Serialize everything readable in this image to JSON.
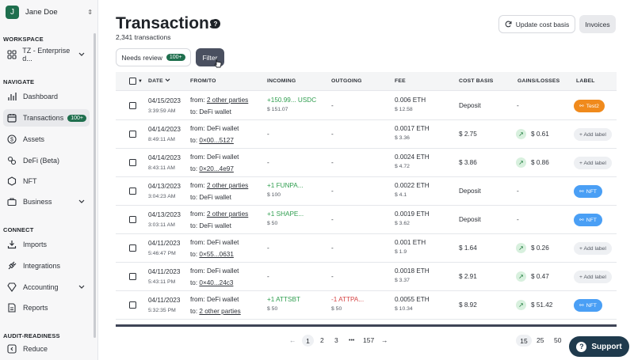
{
  "user": {
    "initial": "J",
    "name": "Jane Doe"
  },
  "sidebar": {
    "workspace_heading": "WORKSPACE",
    "workspace_name": "TZ - Enterprise d...",
    "navigate_heading": "NAVIGATE",
    "nav": [
      {
        "label": "Dashboard",
        "icon": "bar-chart-icon"
      },
      {
        "label": "Transactions",
        "icon": "calendar-icon",
        "badge": "100+"
      },
      {
        "label": "Assets",
        "icon": "dollar-circle-icon"
      },
      {
        "label": "DeFi (Beta)",
        "icon": "defi-icon"
      },
      {
        "label": "NFT",
        "icon": "nft-icon"
      },
      {
        "label": "Business",
        "icon": "briefcase-icon"
      }
    ],
    "connect_heading": "CONNECT",
    "connect": [
      {
        "label": "Imports",
        "icon": "download-icon"
      },
      {
        "label": "Integrations",
        "icon": "plug-icon"
      },
      {
        "label": "Accounting",
        "icon": "accounting-icon"
      },
      {
        "label": "Reports",
        "icon": "report-icon"
      }
    ],
    "audit_heading": "AUDIT-READINESS",
    "audit": [
      {
        "label": "Reduce",
        "icon": "reduce-icon"
      }
    ]
  },
  "header": {
    "title": "Transactions",
    "count": "2,341 transactions",
    "update_cost_basis": "Update cost basis",
    "invoices": "Invoices",
    "needs_review": "Needs review",
    "needs_review_badge": "100+",
    "filter": "Filter"
  },
  "table": {
    "columns": [
      "DATE",
      "FROM/TO",
      "INCOMING",
      "OUTGOING",
      "FEE",
      "COST BASIS",
      "GAINS/LOSSES",
      "LABEL"
    ],
    "rows": [
      {
        "date": "04/15/2023",
        "time": "3:39:59 AM",
        "from_prefix": "from:",
        "from": "2 other parties",
        "from_link": true,
        "to_prefix": "to:",
        "to": "DeFi wallet",
        "to_link": false,
        "incoming": "+150.99... USDC",
        "incoming_sub": "$ 151.07",
        "outgoing": "-",
        "outgoing_sub": "",
        "fee": "0.006 ETH",
        "fee_sub": "$ 12.58",
        "cost_basis": "Deposit",
        "gain": "-",
        "gain_icon": false,
        "label": "Test2",
        "label_type": "test"
      },
      {
        "date": "04/14/2023",
        "time": "8:49:11 AM",
        "from_prefix": "from:",
        "from": "DeFi wallet",
        "from_link": false,
        "to_prefix": "to:",
        "to": "0×00...5127",
        "to_link": true,
        "incoming": "-",
        "incoming_sub": "",
        "outgoing": "-",
        "outgoing_sub": "",
        "fee": "0.0017 ETH",
        "fee_sub": "$ 3.36",
        "cost_basis": "$ 2.75",
        "gain": "$ 0.61",
        "gain_icon": true,
        "label": "+ Add label",
        "label_type": "add"
      },
      {
        "date": "04/14/2023",
        "time": "8:43:11 AM",
        "from_prefix": "from:",
        "from": "DeFi wallet",
        "from_link": false,
        "to_prefix": "to:",
        "to": "0×20...4e97",
        "to_link": true,
        "incoming": "-",
        "incoming_sub": "",
        "outgoing": "-",
        "outgoing_sub": "",
        "fee": "0.0024 ETH",
        "fee_sub": "$ 4.72",
        "cost_basis": "$ 3.86",
        "gain": "$ 0.86",
        "gain_icon": true,
        "label": "+ Add label",
        "label_type": "add"
      },
      {
        "date": "04/13/2023",
        "time": "3:04:23 AM",
        "from_prefix": "from:",
        "from": "2 other parties",
        "from_link": true,
        "to_prefix": "to:",
        "to": "DeFi wallet",
        "to_link": false,
        "incoming": "+1 FUNPA...",
        "incoming_sub": "$ 100",
        "outgoing": "-",
        "outgoing_sub": "",
        "fee": "0.0022 ETH",
        "fee_sub": "$ 4.1",
        "cost_basis": "Deposit",
        "gain": "-",
        "gain_icon": false,
        "label": "NFT",
        "label_type": "nft"
      },
      {
        "date": "04/13/2023",
        "time": "3:03:11 AM",
        "from_prefix": "from:",
        "from": "2 other parties",
        "from_link": true,
        "to_prefix": "to:",
        "to": "DeFi wallet",
        "to_link": false,
        "incoming": "+1 SHAPE...",
        "incoming_sub": "$ 50",
        "outgoing": "-",
        "outgoing_sub": "",
        "fee": "0.0019 ETH",
        "fee_sub": "$ 3.62",
        "cost_basis": "Deposit",
        "gain": "-",
        "gain_icon": false,
        "label": "NFT",
        "label_type": "nft"
      },
      {
        "date": "04/11/2023",
        "time": "5:46:47 PM",
        "from_prefix": "from:",
        "from": "DeFi wallet",
        "from_link": false,
        "to_prefix": "to:",
        "to": "0×55...0631",
        "to_link": true,
        "incoming": "-",
        "incoming_sub": "",
        "outgoing": "-",
        "outgoing_sub": "",
        "fee": "0.001 ETH",
        "fee_sub": "$ 1.9",
        "cost_basis": "$ 1.64",
        "gain": "$ 0.26",
        "gain_icon": true,
        "label": "+ Add label",
        "label_type": "add"
      },
      {
        "date": "04/11/2023",
        "time": "5:43:11 PM",
        "from_prefix": "from:",
        "from": "DeFi wallet",
        "from_link": false,
        "to_prefix": "to:",
        "to": "0×40...24c3",
        "to_link": true,
        "incoming": "-",
        "incoming_sub": "",
        "outgoing": "-",
        "outgoing_sub": "",
        "fee": "0.0018 ETH",
        "fee_sub": "$ 3.37",
        "cost_basis": "$ 2.91",
        "gain": "$ 0.47",
        "gain_icon": true,
        "label": "+ Add label",
        "label_type": "add"
      },
      {
        "date": "04/11/2023",
        "time": "5:32:35 PM",
        "from_prefix": "from:",
        "from": "DeFi wallet",
        "from_link": false,
        "to_prefix": "to:",
        "to": "2 other parties",
        "to_link": true,
        "incoming": "+1 ATTSBT",
        "incoming_sub": "$ 50",
        "outgoing": "-1 ATTPA...",
        "outgoing_sub": "$ 50",
        "fee": "0.0055 ETH",
        "fee_sub": "$ 10.34",
        "cost_basis": "$ 8.92",
        "gain": "$ 51.42",
        "gain_icon": true,
        "label": "NFT",
        "label_type": "nft"
      },
      {
        "date": "04/11/2023",
        "time": "",
        "from_prefix": "from:",
        "from": "DeFi wallet",
        "from_link": false,
        "to_prefix": "",
        "to": "",
        "to_link": false,
        "incoming": "",
        "incoming_sub": "",
        "outgoing": "",
        "outgoing_sub": "",
        "fee": "0.0046 ETH",
        "fee_sub": "",
        "cost_basis": "",
        "gain": "",
        "gain_icon": false,
        "label": "",
        "label_type": "none"
      }
    ]
  },
  "pagination": {
    "prev": "←",
    "pages": [
      "1",
      "2",
      "3"
    ],
    "ellipsis": "•••",
    "last": "157",
    "next": "→",
    "sizes": [
      "15",
      "25",
      "50"
    ],
    "selected_size": "15"
  },
  "support": {
    "label": "Support"
  }
}
